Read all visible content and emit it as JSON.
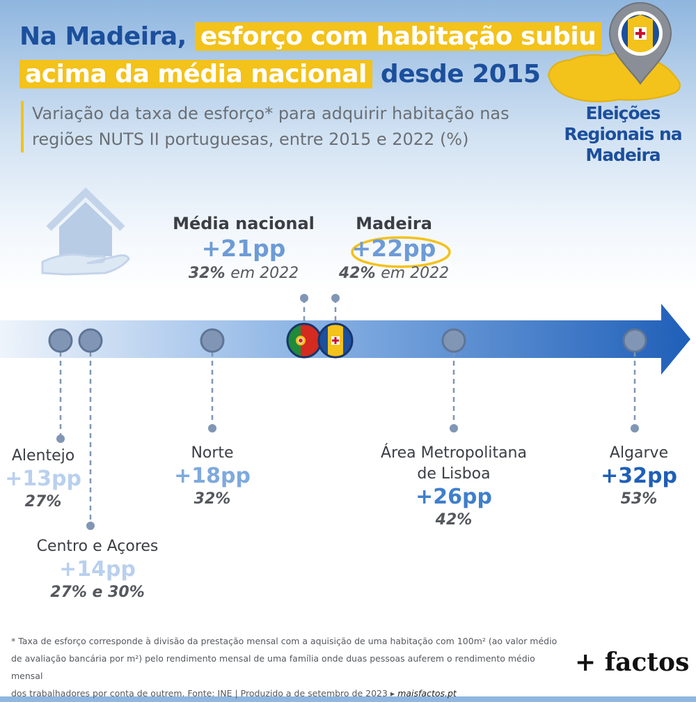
{
  "title": {
    "line1_part1": "Na Madeira,",
    "line1_part2": "esforço com habitação subiu",
    "line2_part1": "acima da média nacional",
    "line2_part2": "desde 2015"
  },
  "subtitle": "Variação da taxa de esforço* para adquirir habitação nas regiões NUTS II portuguesas, entre 2015 e 2022 (%)",
  "badge": {
    "line1": "Eleições",
    "line2": "Regionais na",
    "line3": "Madeira"
  },
  "colors": {
    "accent_yellow": "#f3c21b",
    "title_blue": "#1c4f9c",
    "arrow_dark": "#1f5fb8",
    "arrow_light": "#e8f1fa",
    "dot": "#8096b4"
  },
  "chart_data": {
    "type": "scatter",
    "unit": "pp",
    "points": [
      {
        "region": "Alentejo",
        "value": 13,
        "value_label": "+13pp",
        "rate_2022": "27%",
        "color": "#b9d0ee"
      },
      {
        "region": "Centro e Açores",
        "value": 14,
        "value_label": "+14pp",
        "rate_2022": "27% e 30%",
        "color": "#b9d0ee"
      },
      {
        "region": "Norte",
        "value": 18,
        "value_label": "+18pp",
        "rate_2022": "32%",
        "color": "#7ea9dc"
      },
      {
        "region": "Média nacional",
        "value": 21,
        "value_label": "+21pp",
        "rate_2022": "32%",
        "rate_suffix": "em 2022",
        "color": "#6d9bd6"
      },
      {
        "region": "Madeira",
        "value": 22,
        "value_label": "+22pp",
        "rate_2022": "42%",
        "rate_suffix": "em 2022",
        "color": "#6d9bd6"
      },
      {
        "region_line1": "Área Metropolitana",
        "region_line2": "de Lisboa",
        "value": 26,
        "value_label": "+26pp",
        "rate_2022": "42%",
        "color": "#3f7fcb"
      },
      {
        "region": "Algarve",
        "value": 32,
        "value_label": "+32pp",
        "rate_2022": "53%",
        "color": "#1f5fb8"
      }
    ]
  },
  "footnote": {
    "line1": "* Taxa de esforço corresponde à divisão da prestação mensal com a aquisição de uma habitação com 100m² (ao valor médio",
    "line2": "de avaliação bancária por m²) pelo rendimento mensal de uma família onde duas pessoas auferem o rendimento médio mensal",
    "line3a": "dos trabalhadores por conta de outrem. Fonte: INE | Produzido a  de setembro de 2023 ▸ ",
    "line3b": "maisfactos.pt"
  },
  "brand": "+ factos"
}
